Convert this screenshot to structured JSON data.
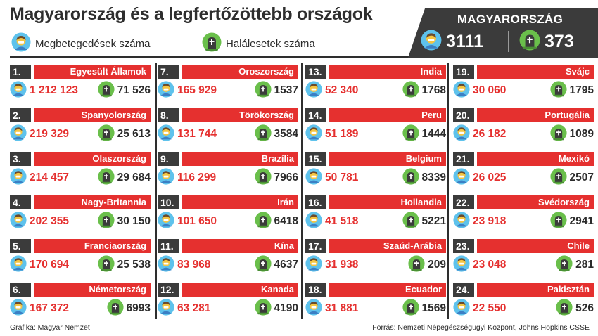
{
  "title": "Magyarország és a legfertőzöttebb országok",
  "legend": {
    "cases_label": "Megbetegedések száma",
    "deaths_label": "Halálesetek száma",
    "cases_icon": "person-icon",
    "deaths_icon": "grave-icon"
  },
  "hungary": {
    "label": "MAGYARORSZÁG",
    "cases": "3111",
    "deaths": "373"
  },
  "colors": {
    "accent_red": "#e5302f",
    "dark": "#3b3b3b",
    "person_skin": "#f5c542",
    "person_bg": "#5ec2ec",
    "grave_bg": "#6abf4b"
  },
  "countries": [
    {
      "rank": "1.",
      "name": "Egyesült Államok",
      "cases": "1 212 123",
      "deaths": "71 526"
    },
    {
      "rank": "2.",
      "name": "Spanyolország",
      "cases": "219 329",
      "deaths": "25 613"
    },
    {
      "rank": "3.",
      "name": "Olaszország",
      "cases": "214 457",
      "deaths": "29 684"
    },
    {
      "rank": "4.",
      "name": "Nagy-Britannia",
      "cases": "202 355",
      "deaths": "30 150"
    },
    {
      "rank": "5.",
      "name": "Franciaország",
      "cases": "170 694",
      "deaths": "25 538"
    },
    {
      "rank": "6.",
      "name": "Németország",
      "cases": "167 372",
      "deaths": "6993"
    },
    {
      "rank": "7.",
      "name": "Oroszország",
      "cases": "165 929",
      "deaths": "1537"
    },
    {
      "rank": "8.",
      "name": "Törökország",
      "cases": "131 744",
      "deaths": "3584"
    },
    {
      "rank": "9.",
      "name": "Brazília",
      "cases": "116 299",
      "deaths": "7966"
    },
    {
      "rank": "10.",
      "name": "Irán",
      "cases": "101 650",
      "deaths": "6418"
    },
    {
      "rank": "11.",
      "name": "Kína",
      "cases": "83 968",
      "deaths": "4637"
    },
    {
      "rank": "12.",
      "name": "Kanada",
      "cases": "63 281",
      "deaths": "4190"
    },
    {
      "rank": "13.",
      "name": "India",
      "cases": "52 340",
      "deaths": "1768"
    },
    {
      "rank": "14.",
      "name": "Peru",
      "cases": "51 189",
      "deaths": "1444"
    },
    {
      "rank": "15.",
      "name": "Belgium",
      "cases": "50 781",
      "deaths": "8339"
    },
    {
      "rank": "16.",
      "name": "Hollandia",
      "cases": "41 518",
      "deaths": "5221"
    },
    {
      "rank": "17.",
      "name": "Szaúd-Arábia",
      "cases": "31 938",
      "deaths": "209"
    },
    {
      "rank": "18.",
      "name": "Ecuador",
      "cases": "31 881",
      "deaths": "1569"
    },
    {
      "rank": "19.",
      "name": "Svájc",
      "cases": "30 060",
      "deaths": "1795"
    },
    {
      "rank": "20.",
      "name": "Portugália",
      "cases": "26 182",
      "deaths": "1089"
    },
    {
      "rank": "21.",
      "name": "Mexikó",
      "cases": "26 025",
      "deaths": "2507"
    },
    {
      "rank": "22.",
      "name": "Svédország",
      "cases": "23 918",
      "deaths": "2941"
    },
    {
      "rank": "23.",
      "name": "Chile",
      "cases": "23 048",
      "deaths": "281"
    },
    {
      "rank": "24.",
      "name": "Pakisztán",
      "cases": "22 550",
      "deaths": "526"
    }
  ],
  "footer": {
    "credit": "Grafika: Magyar Nemzet",
    "source": "Forrás: Nemzeti Népegészségügyi Központ, Johns Hopkins CSSE"
  }
}
